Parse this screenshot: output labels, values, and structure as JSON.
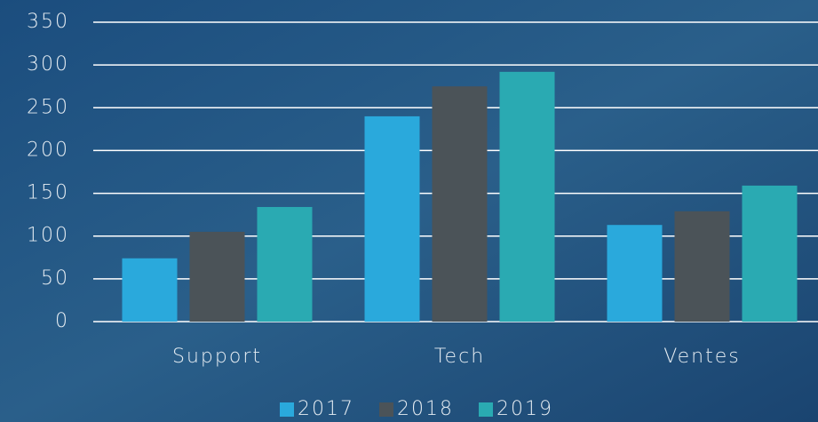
{
  "chart_data": {
    "type": "bar",
    "categories": [
      "Support",
      "Tech",
      "Ventes"
    ],
    "series": [
      {
        "name": "2017",
        "color": "#2aa9dc",
        "values": [
          74,
          240,
          113
        ]
      },
      {
        "name": "2018",
        "color": "#4b5358",
        "values": [
          105,
          275,
          129
        ]
      },
      {
        "name": "2019",
        "color": "#2aaab2",
        "values": [
          134,
          292,
          159
        ]
      }
    ],
    "ylim": [
      0,
      350
    ],
    "yticks": [
      0,
      50,
      100,
      150,
      200,
      250,
      300,
      350
    ],
    "grid": true,
    "legend": "bottom"
  }
}
